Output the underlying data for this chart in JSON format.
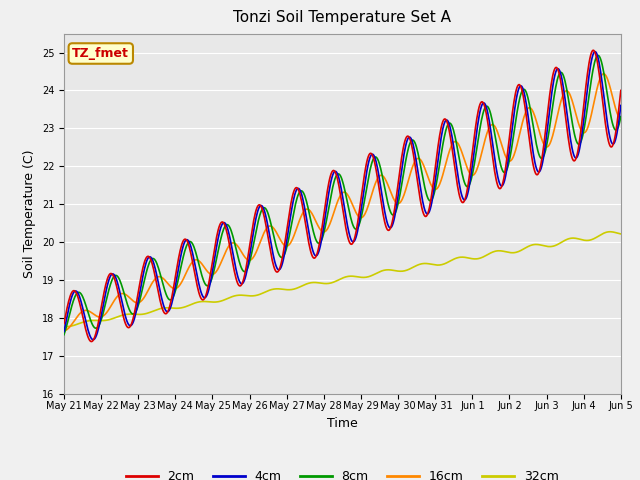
{
  "title": "Tonzi Soil Temperature Set A",
  "xlabel": "Time",
  "ylabel": "Soil Temperature (C)",
  "ylim": [
    16.0,
    25.5
  ],
  "annotation_text": "TZ_fmet",
  "annotation_color": "#cc0000",
  "annotation_bg": "#ffffcc",
  "annotation_border": "#bb8800",
  "colors": {
    "2cm": "#dd0000",
    "4cm": "#0000cc",
    "8cm": "#009900",
    "16cm": "#ff8800",
    "32cm": "#cccc00"
  },
  "tick_labels": [
    "May 21",
    "May 22",
    "May 23",
    "May 24",
    "May 25",
    "May 26",
    "May 27",
    "May 28",
    "May 29",
    "May 30",
    "May 31",
    "Jun 1",
    "Jun 2",
    "Jun 3",
    "Jun 4",
    "Jun 5"
  ],
  "yticks": [
    16.0,
    17.0,
    18.0,
    19.0,
    20.0,
    21.0,
    22.0,
    23.0,
    24.0,
    25.0
  ],
  "line_width": 1.2,
  "fig_bg": "#f0f0f0",
  "plot_bg": "#e8e8e8",
  "grid_color": "#ffffff",
  "title_fontsize": 11,
  "label_fontsize": 9,
  "tick_fontsize": 7,
  "legend_fontsize": 9
}
